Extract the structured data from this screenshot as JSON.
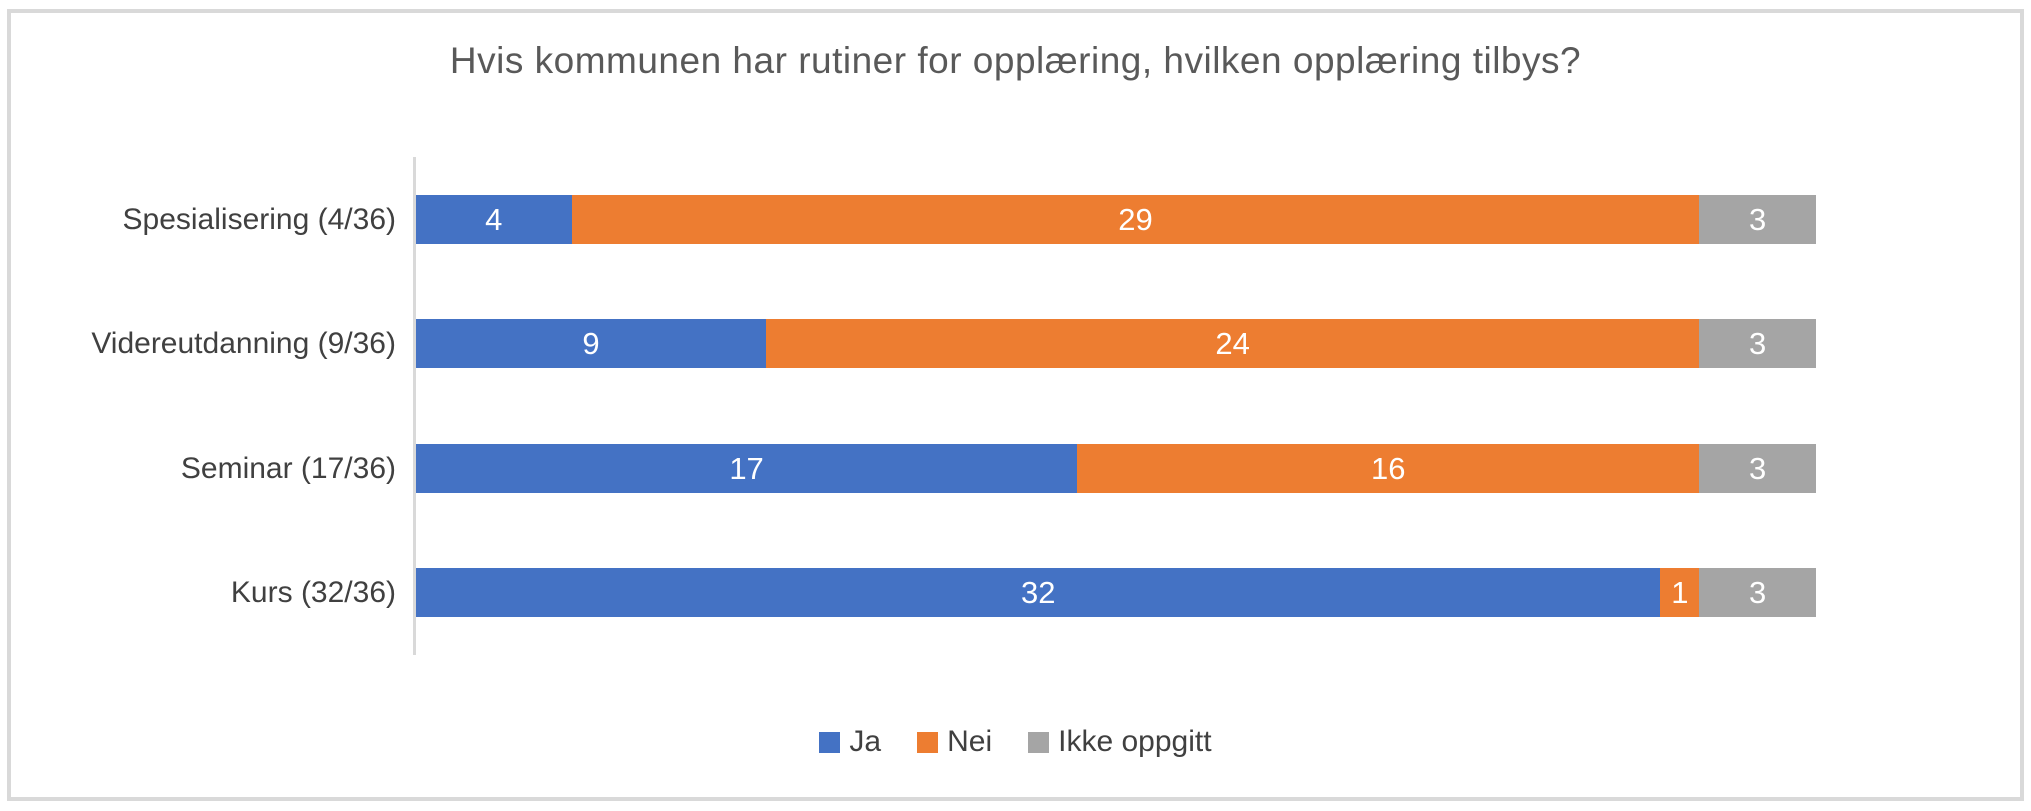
{
  "chart_data": {
    "type": "bar",
    "orientation": "horizontal",
    "stacked": true,
    "title": "Hvis kommunen har rutiner for opplæring, hvilken opplæring tilbys?",
    "categories": [
      "Spesialisering (4/36)",
      "Videreutdanning (9/36)",
      "Seminar (17/36)",
      "Kurs (32/36)"
    ],
    "series": [
      {
        "name": "Ja",
        "color": "#4472C4",
        "values": [
          4,
          9,
          17,
          32
        ]
      },
      {
        "name": "Nei",
        "color": "#ED7D31",
        "values": [
          29,
          24,
          16,
          1
        ]
      },
      {
        "name": "Ikke oppgitt",
        "color": "#A5A5A5",
        "values": [
          3,
          3,
          3,
          3
        ]
      }
    ],
    "x_total": 36,
    "xlabel": "",
    "ylabel": "",
    "data_labels": true,
    "data_label_color": "#FFFFFF",
    "legend_position": "bottom",
    "legend_entries": [
      "Ja",
      "Nei",
      "Ikke oppgitt"
    ],
    "gridlines": false
  },
  "style": {
    "frame_border_color": "#D9D9D9",
    "axis_line_color": "#D9D9D9",
    "title_color": "#595959",
    "category_label_color": "#404040",
    "legend_label_color": "#404040",
    "background_color": "#FFFFFF"
  }
}
